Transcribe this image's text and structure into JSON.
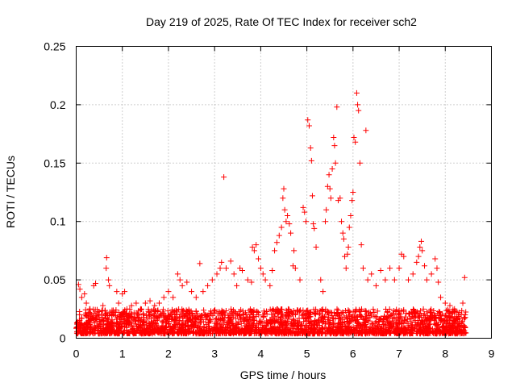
{
  "chart_data": {
    "type": "scatter",
    "title": "Day 219 of 2025, Rate Of TEC Index for receiver sch2",
    "xlabel": "GPS time / hours",
    "ylabel": "ROTI / TECUs",
    "xlim": [
      0,
      9
    ],
    "ylim": [
      0,
      0.25
    ],
    "xticks": [
      "0",
      "1",
      "2",
      "3",
      "4",
      "5",
      "6",
      "7",
      "8",
      "9"
    ],
    "yticks": [
      "0",
      "0.05",
      "0.1",
      "0.15",
      "0.2",
      "0.25"
    ],
    "grid": true,
    "marker": "+",
    "color": "#ff0000",
    "series": [
      {
        "points": [
          [
            0.02,
            0.012
          ],
          [
            0.05,
            0.046
          ],
          [
            0.08,
            0.042
          ],
          [
            0.12,
            0.035
          ],
          [
            0.18,
            0.038
          ],
          [
            0.22,
            0.03
          ],
          [
            0.3,
            0.025
          ],
          [
            0.38,
            0.045
          ],
          [
            0.42,
            0.047
          ],
          [
            0.5,
            0.02
          ],
          [
            0.58,
            0.028
          ],
          [
            0.65,
            0.06
          ],
          [
            0.66,
            0.069
          ],
          [
            0.7,
            0.05
          ],
          [
            0.72,
            0.045
          ],
          [
            0.8,
            0.022
          ],
          [
            0.88,
            0.04
          ],
          [
            0.92,
            0.03
          ],
          [
            0.96,
            0.02
          ],
          [
            1.0,
            0.038
          ],
          [
            1.05,
            0.04
          ],
          [
            1.1,
            0.025
          ],
          [
            1.2,
            0.028
          ],
          [
            1.3,
            0.03
          ],
          [
            1.4,
            0.025
          ],
          [
            1.5,
            0.03
          ],
          [
            1.6,
            0.032
          ],
          [
            1.7,
            0.028
          ],
          [
            1.8,
            0.03
          ],
          [
            1.9,
            0.035
          ],
          [
            2.0,
            0.04
          ],
          [
            2.1,
            0.035
          ],
          [
            2.2,
            0.055
          ],
          [
            2.25,
            0.05
          ],
          [
            2.3,
            0.045
          ],
          [
            2.4,
            0.048
          ],
          [
            2.5,
            0.04
          ],
          [
            2.6,
            0.035
          ],
          [
            2.68,
            0.064
          ],
          [
            2.75,
            0.04
          ],
          [
            2.85,
            0.045
          ],
          [
            2.95,
            0.05
          ],
          [
            3.05,
            0.055
          ],
          [
            3.12,
            0.06
          ],
          [
            3.15,
            0.065
          ],
          [
            3.2,
            0.138
          ],
          [
            3.25,
            0.06
          ],
          [
            3.35,
            0.066
          ],
          [
            3.42,
            0.055
          ],
          [
            3.48,
            0.045
          ],
          [
            3.55,
            0.06
          ],
          [
            3.6,
            0.058
          ],
          [
            3.72,
            0.05
          ],
          [
            3.8,
            0.048
          ],
          [
            3.82,
            0.078
          ],
          [
            3.86,
            0.075
          ],
          [
            3.9,
            0.08
          ],
          [
            3.95,
            0.068
          ],
          [
            4.0,
            0.06
          ],
          [
            4.05,
            0.055
          ],
          [
            4.1,
            0.05
          ],
          [
            4.2,
            0.045
          ],
          [
            4.25,
            0.058
          ],
          [
            4.3,
            0.075
          ],
          [
            4.35,
            0.082
          ],
          [
            4.4,
            0.088
          ],
          [
            4.45,
            0.095
          ],
          [
            4.48,
            0.12
          ],
          [
            4.5,
            0.128
          ],
          [
            4.52,
            0.11
          ],
          [
            4.55,
            0.1
          ],
          [
            4.58,
            0.105
          ],
          [
            4.62,
            0.098
          ],
          [
            4.65,
            0.09
          ],
          [
            4.7,
            0.062
          ],
          [
            4.72,
            0.075
          ],
          [
            4.75,
            0.06
          ],
          [
            4.85,
            0.05
          ],
          [
            4.92,
            0.112
          ],
          [
            4.95,
            0.108
          ],
          [
            4.98,
            0.1
          ],
          [
            5.02,
            0.187
          ],
          [
            5.05,
            0.182
          ],
          [
            5.08,
            0.163
          ],
          [
            5.1,
            0.152
          ],
          [
            5.12,
            0.122
          ],
          [
            5.14,
            0.098
          ],
          [
            5.16,
            0.094
          ],
          [
            5.2,
            0.078
          ],
          [
            5.3,
            0.05
          ],
          [
            5.35,
            0.04
          ],
          [
            5.4,
            0.1
          ],
          [
            5.42,
            0.11
          ],
          [
            5.45,
            0.13
          ],
          [
            5.48,
            0.14
          ],
          [
            5.5,
            0.128
          ],
          [
            5.52,
            0.12
          ],
          [
            5.55,
            0.145
          ],
          [
            5.58,
            0.172
          ],
          [
            5.6,
            0.165
          ],
          [
            5.62,
            0.15
          ],
          [
            5.65,
            0.198
          ],
          [
            5.68,
            0.118
          ],
          [
            5.72,
            0.12
          ],
          [
            5.75,
            0.1
          ],
          [
            5.78,
            0.09
          ],
          [
            5.8,
            0.085
          ],
          [
            5.82,
            0.07
          ],
          [
            5.85,
            0.06
          ],
          [
            5.88,
            0.072
          ],
          [
            5.9,
            0.078
          ],
          [
            5.92,
            0.095
          ],
          [
            5.95,
            0.105
          ],
          [
            5.98,
            0.118
          ],
          [
            6.0,
            0.125
          ],
          [
            6.02,
            0.172
          ],
          [
            6.05,
            0.168
          ],
          [
            6.08,
            0.21
          ],
          [
            6.1,
            0.2
          ],
          [
            6.12,
            0.195
          ],
          [
            6.15,
            0.15
          ],
          [
            6.18,
            0.08
          ],
          [
            6.22,
            0.06
          ],
          [
            6.28,
            0.178
          ],
          [
            6.32,
            0.05
          ],
          [
            6.4,
            0.055
          ],
          [
            6.5,
            0.045
          ],
          [
            6.6,
            0.058
          ],
          [
            6.7,
            0.05
          ],
          [
            6.8,
            0.06
          ],
          [
            6.9,
            0.05
          ],
          [
            7.0,
            0.06
          ],
          [
            7.05,
            0.072
          ],
          [
            7.1,
            0.07
          ],
          [
            7.2,
            0.05
          ],
          [
            7.3,
            0.055
          ],
          [
            7.38,
            0.065
          ],
          [
            7.42,
            0.07
          ],
          [
            7.45,
            0.078
          ],
          [
            7.48,
            0.083
          ],
          [
            7.5,
            0.075
          ],
          [
            7.55,
            0.062
          ],
          [
            7.6,
            0.05
          ],
          [
            7.7,
            0.055
          ],
          [
            7.78,
            0.068
          ],
          [
            7.82,
            0.06
          ],
          [
            7.85,
            0.048
          ],
          [
            7.9,
            0.035
          ],
          [
            8.0,
            0.03
          ],
          [
            8.1,
            0.028
          ],
          [
            8.2,
            0.025
          ],
          [
            8.3,
            0.022
          ],
          [
            8.38,
            0.03
          ],
          [
            8.42,
            0.052
          ],
          [
            8.43,
            0.02
          ]
        ]
      }
    ],
    "noise_band": {
      "x_start": 0.0,
      "x_end": 8.45,
      "y_min": 0.004,
      "y_max": 0.025,
      "count": 2600
    }
  }
}
